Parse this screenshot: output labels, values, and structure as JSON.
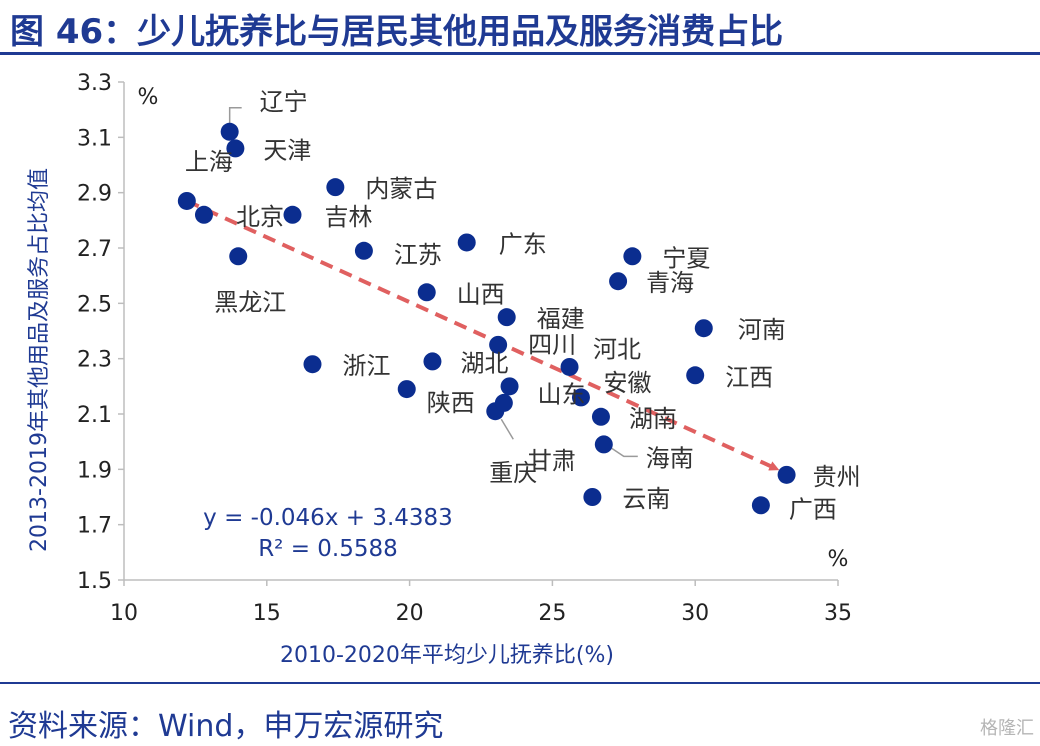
{
  "header": {
    "title": "图 46：少儿抚养比与居民其他用品及服务消费占比"
  },
  "footer": {
    "source": "资料来源：Wind，申万宏源研究",
    "watermark": "格隆汇"
  },
  "colors": {
    "accent": "#1f3a93",
    "point": "#0b2d8f",
    "trend": "#e06060"
  },
  "chart_data": {
    "type": "scatter",
    "title": "少儿抚养比与居民其他用品及服务消费占比",
    "xlabel": "2010-2020年平均少儿抚养比(%)",
    "ylabel": "2013-2019年其他用品及服务占比均值",
    "x_unit": "%",
    "y_unit": "%",
    "xlim": [
      10,
      35
    ],
    "ylim": [
      1.5,
      3.3
    ],
    "xticks": [
      10,
      15,
      20,
      25,
      30,
      35
    ],
    "yticks": [
      1.5,
      1.7,
      1.9,
      2.1,
      2.3,
      2.5,
      2.7,
      2.9,
      3.1,
      3.3
    ],
    "regression": {
      "equation": "y = -0.046x + 3.4383",
      "r2": "R² = 0.5588",
      "slope": -0.046,
      "intercept": 3.4383
    },
    "trend_arrow": {
      "from": [
        12.2,
        2.87
      ],
      "to": [
        33.2,
        1.88
      ]
    },
    "points": [
      {
        "name": "辽宁",
        "x": 13.7,
        "y": 3.12
      },
      {
        "name": "天津",
        "x": 13.9,
        "y": 3.06
      },
      {
        "name": "上海",
        "x": 12.2,
        "y": 2.87
      },
      {
        "name": "北京",
        "x": 12.8,
        "y": 2.82
      },
      {
        "name": "黑龙江",
        "x": 14.0,
        "y": 2.67
      },
      {
        "name": "吉林",
        "x": 15.9,
        "y": 2.82
      },
      {
        "name": "内蒙古",
        "x": 17.4,
        "y": 2.92
      },
      {
        "name": "江苏",
        "x": 18.4,
        "y": 2.69
      },
      {
        "name": "广东",
        "x": 22.0,
        "y": 2.72
      },
      {
        "name": "山西",
        "x": 20.6,
        "y": 2.54
      },
      {
        "name": "福建",
        "x": 23.4,
        "y": 2.45
      },
      {
        "name": "四川",
        "x": 23.1,
        "y": 2.35
      },
      {
        "name": "浙江",
        "x": 16.6,
        "y": 2.28
      },
      {
        "name": "湖北",
        "x": 20.8,
        "y": 2.29
      },
      {
        "name": "陕西",
        "x": 19.9,
        "y": 2.19
      },
      {
        "name": "重庆",
        "x": 23.0,
        "y": 2.11
      },
      {
        "name": "甘肃",
        "x": 23.3,
        "y": 2.14
      },
      {
        "name": "山东",
        "x": 23.5,
        "y": 2.2
      },
      {
        "name": "安徽",
        "x": 25.6,
        "y": 2.27
      },
      {
        "name": "河北",
        "x": 26.0,
        "y": 2.16
      },
      {
        "name": "湖南",
        "x": 26.7,
        "y": 2.09
      },
      {
        "name": "海南",
        "x": 26.8,
        "y": 1.99
      },
      {
        "name": "云南",
        "x": 26.4,
        "y": 1.8
      },
      {
        "name": "宁夏",
        "x": 27.8,
        "y": 2.67
      },
      {
        "name": "青海",
        "x": 27.3,
        "y": 2.58
      },
      {
        "name": "河南",
        "x": 30.3,
        "y": 2.41
      },
      {
        "name": "江西",
        "x": 30.0,
        "y": 2.24
      },
      {
        "name": "贵州",
        "x": 33.2,
        "y": 1.88
      },
      {
        "name": "广西",
        "x": 32.3,
        "y": 1.77
      }
    ]
  }
}
